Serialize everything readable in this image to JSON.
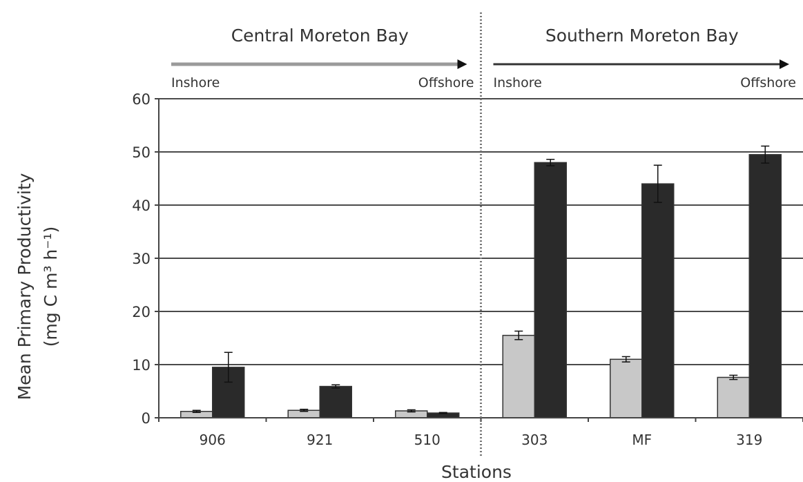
{
  "chart_data": {
    "type": "bar",
    "title": "",
    "xlabel": "Stations",
    "ylabel_line1": "Mean Primary Productivity",
    "ylabel_line2": "(mg C m³ h⁻¹)",
    "ylim": [
      0,
      60
    ],
    "yticks": [
      0,
      10,
      20,
      30,
      40,
      50,
      60
    ],
    "grid": true,
    "categories": [
      "906",
      "921",
      "510",
      "303",
      "MF",
      "319"
    ],
    "series": [
      {
        "color": "#c8c8c8",
        "values": [
          1.2,
          1.4,
          1.3,
          15.5,
          11.0,
          7.6
        ],
        "errors": [
          0.2,
          0.2,
          0.2,
          0.8,
          0.5,
          0.4
        ]
      },
      {
        "color": "#2a2a2a",
        "values": [
          9.5,
          5.9,
          0.9,
          48.0,
          44.0,
          49.5
        ],
        "errors": [
          2.8,
          0.3,
          0.1,
          0.6,
          3.5,
          1.6
        ]
      }
    ],
    "regions": [
      {
        "label": "Central Moreton Bay",
        "inshore": "Inshore",
        "offshore": "Offshore",
        "categories": [
          0,
          2
        ]
      },
      {
        "label": "Southern Moreton Bay",
        "inshore": "Inshore",
        "offshore": "Offshore",
        "categories": [
          3,
          5
        ]
      }
    ]
  }
}
